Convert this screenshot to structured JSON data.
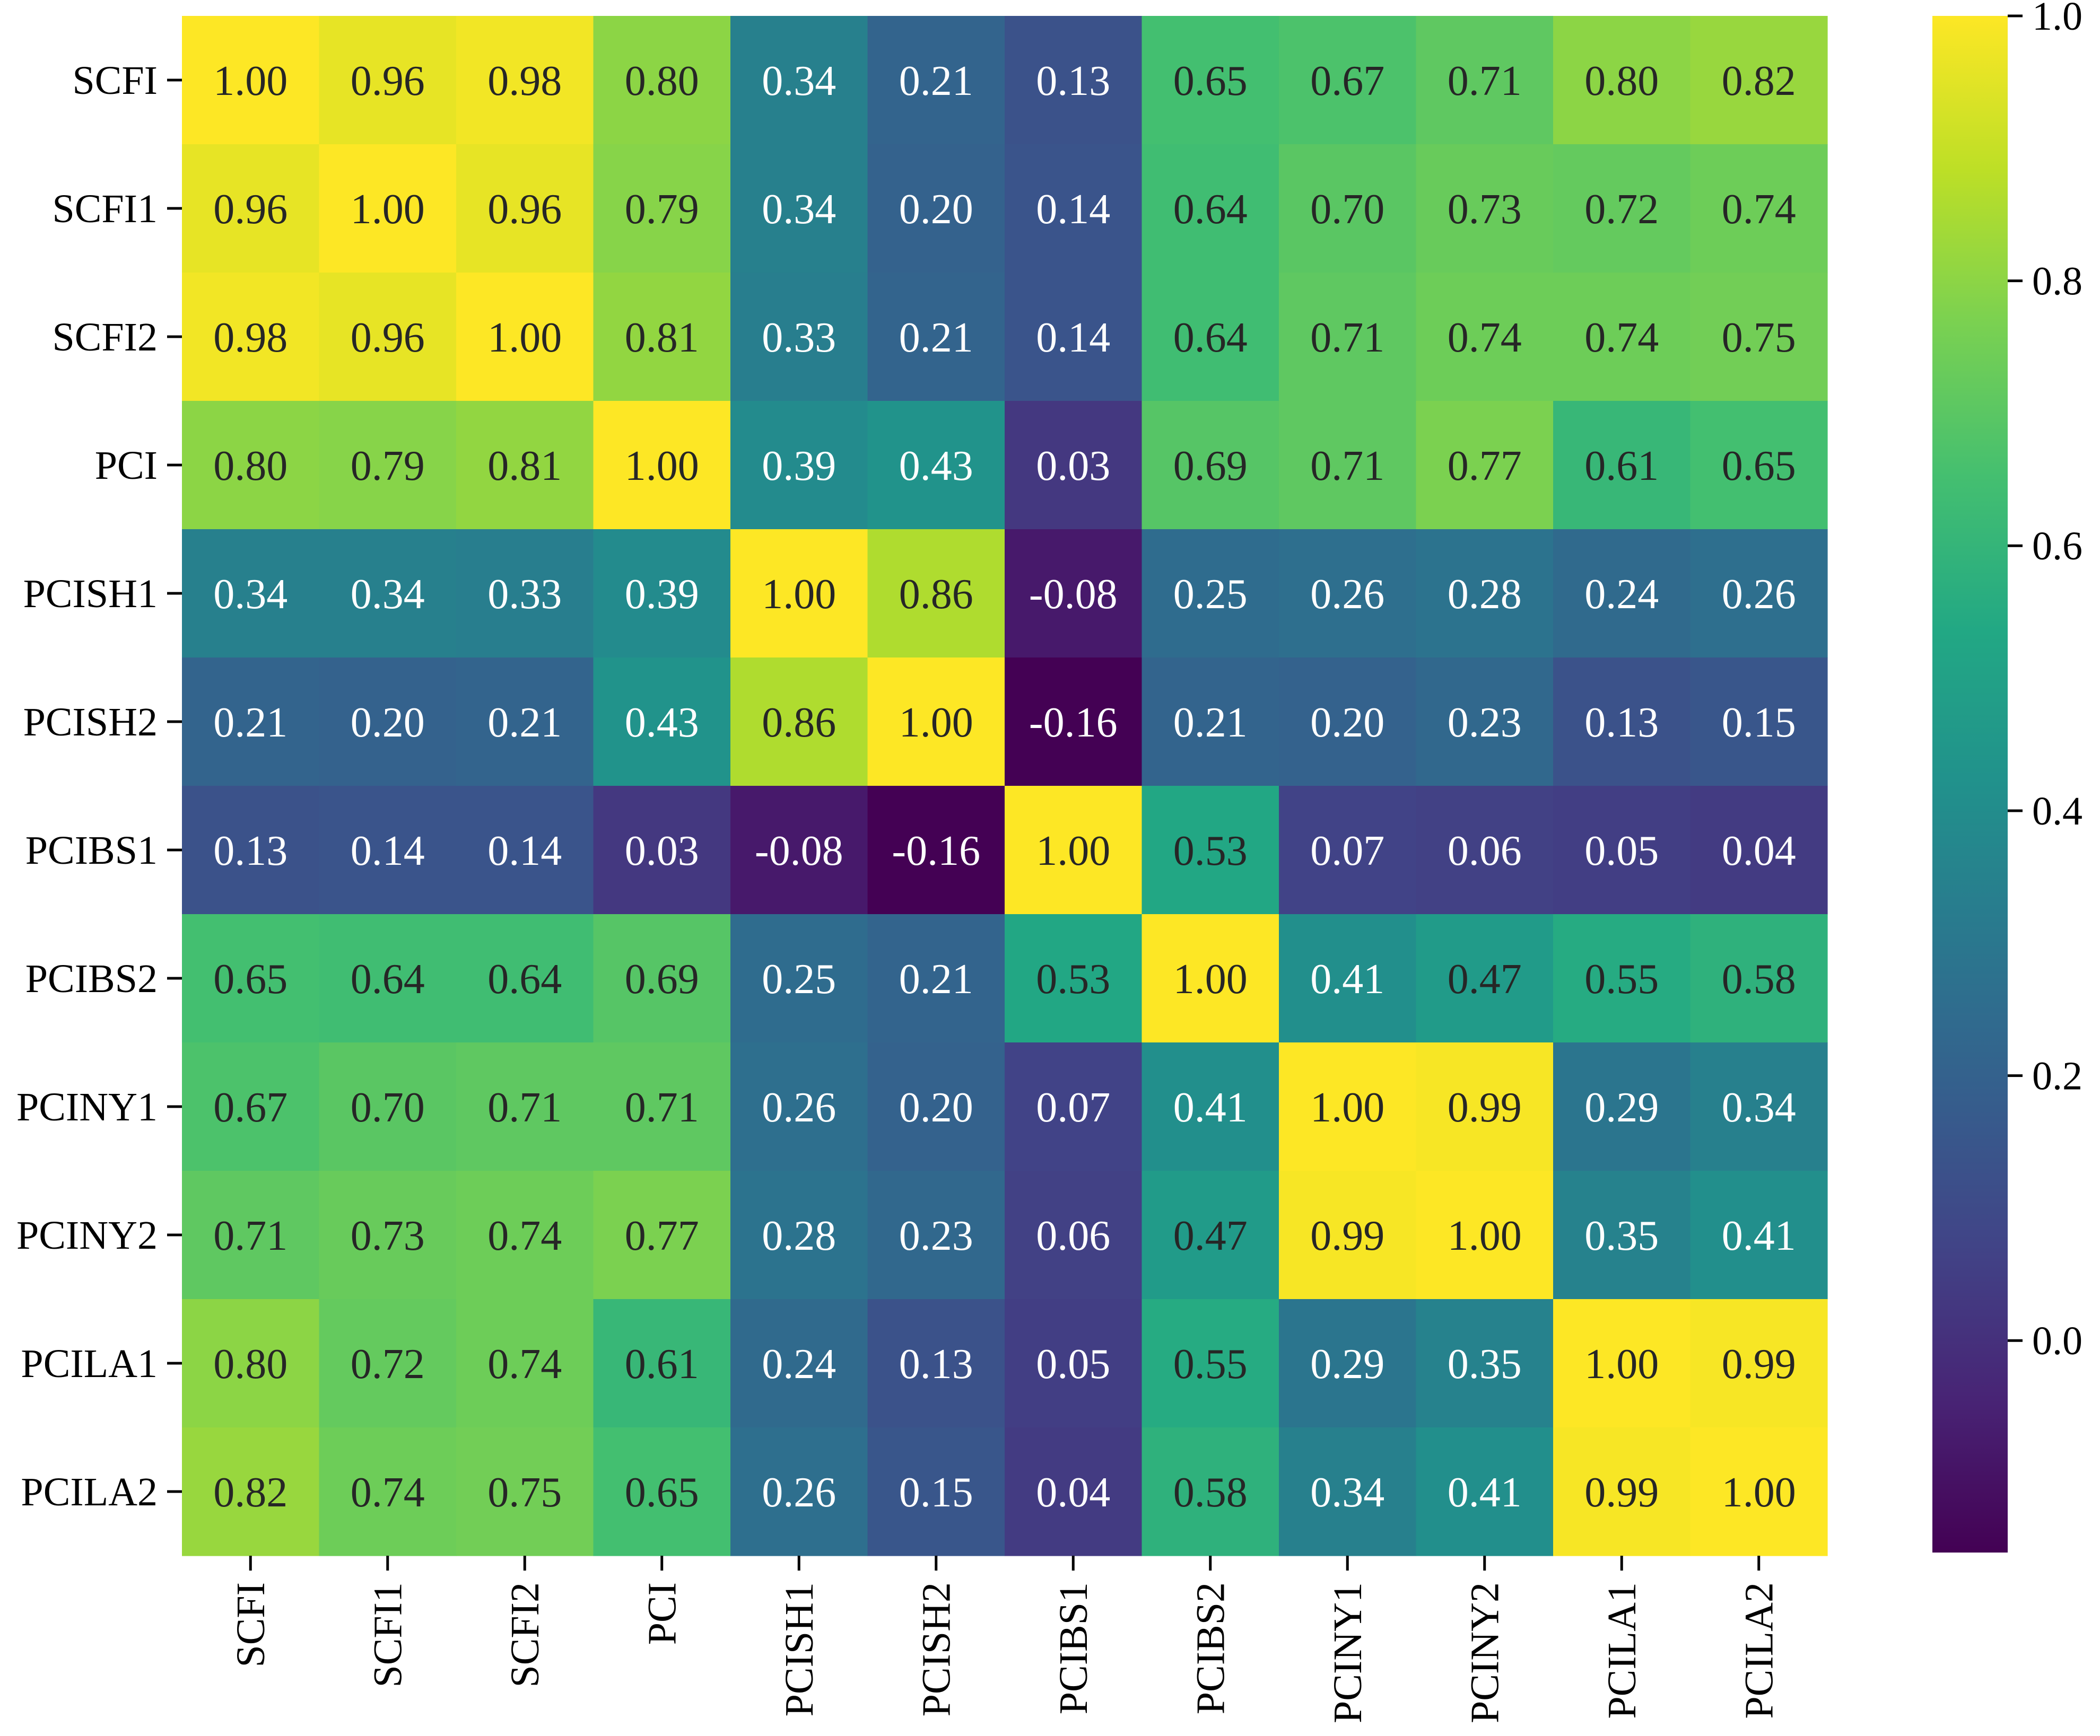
{
  "chart_data": {
    "type": "heatmap",
    "colormap": "viridis",
    "row_labels": [
      "SCFI",
      "SCFI1",
      "SCFI2",
      "PCI",
      "PCISH1",
      "PCISH2",
      "PCIBS1",
      "PCIBS2",
      "PCINY1",
      "PCINY2",
      "PCILA1",
      "PCILA2"
    ],
    "col_labels": [
      "SCFI",
      "SCFI1",
      "SCFI2",
      "PCI",
      "PCISH1",
      "PCISH2",
      "PCIBS1",
      "PCIBS2",
      "PCINY1",
      "PCINY2",
      "PCILA1",
      "PCILA2"
    ],
    "values": [
      [
        1.0,
        0.96,
        0.98,
        0.8,
        0.34,
        0.21,
        0.13,
        0.65,
        0.67,
        0.71,
        0.8,
        0.82
      ],
      [
        0.96,
        1.0,
        0.96,
        0.79,
        0.34,
        0.2,
        0.14,
        0.64,
        0.7,
        0.73,
        0.72,
        0.74
      ],
      [
        0.98,
        0.96,
        1.0,
        0.81,
        0.33,
        0.21,
        0.14,
        0.64,
        0.71,
        0.74,
        0.74,
        0.75
      ],
      [
        0.8,
        0.79,
        0.81,
        1.0,
        0.39,
        0.43,
        0.03,
        0.69,
        0.71,
        0.77,
        0.61,
        0.65
      ],
      [
        0.34,
        0.34,
        0.33,
        0.39,
        1.0,
        0.86,
        -0.08,
        0.25,
        0.26,
        0.28,
        0.24,
        0.26
      ],
      [
        0.21,
        0.2,
        0.21,
        0.43,
        0.86,
        1.0,
        -0.16,
        0.21,
        0.2,
        0.23,
        0.13,
        0.15
      ],
      [
        0.13,
        0.14,
        0.14,
        0.03,
        -0.08,
        -0.16,
        1.0,
        0.53,
        0.07,
        0.06,
        0.05,
        0.04
      ],
      [
        0.65,
        0.64,
        0.64,
        0.69,
        0.25,
        0.21,
        0.53,
        1.0,
        0.41,
        0.47,
        0.55,
        0.58
      ],
      [
        0.67,
        0.7,
        0.71,
        0.71,
        0.26,
        0.2,
        0.07,
        0.41,
        1.0,
        0.99,
        0.29,
        0.34
      ],
      [
        0.71,
        0.73,
        0.74,
        0.77,
        0.28,
        0.23,
        0.06,
        0.47,
        0.99,
        1.0,
        0.35,
        0.41
      ],
      [
        0.8,
        0.72,
        0.74,
        0.61,
        0.24,
        0.13,
        0.05,
        0.55,
        0.29,
        0.35,
        1.0,
        0.99
      ],
      [
        0.82,
        0.74,
        0.75,
        0.65,
        0.26,
        0.15,
        0.04,
        0.58,
        0.34,
        0.41,
        0.99,
        1.0
      ]
    ],
    "vmin": -0.16,
    "vmax": 1.0,
    "colorbar_ticks": [
      0.0,
      0.2,
      0.4,
      0.6,
      0.8,
      1.0
    ],
    "colorbar_tick_labels": [
      "0.0",
      "0.2",
      "0.4",
      "0.6",
      "0.8",
      "1.0"
    ],
    "annotation_format": "0.00",
    "x_tick_rotation": "vertical",
    "legend": "colorbar-right",
    "title": "",
    "xlabel": "",
    "ylabel": ""
  }
}
